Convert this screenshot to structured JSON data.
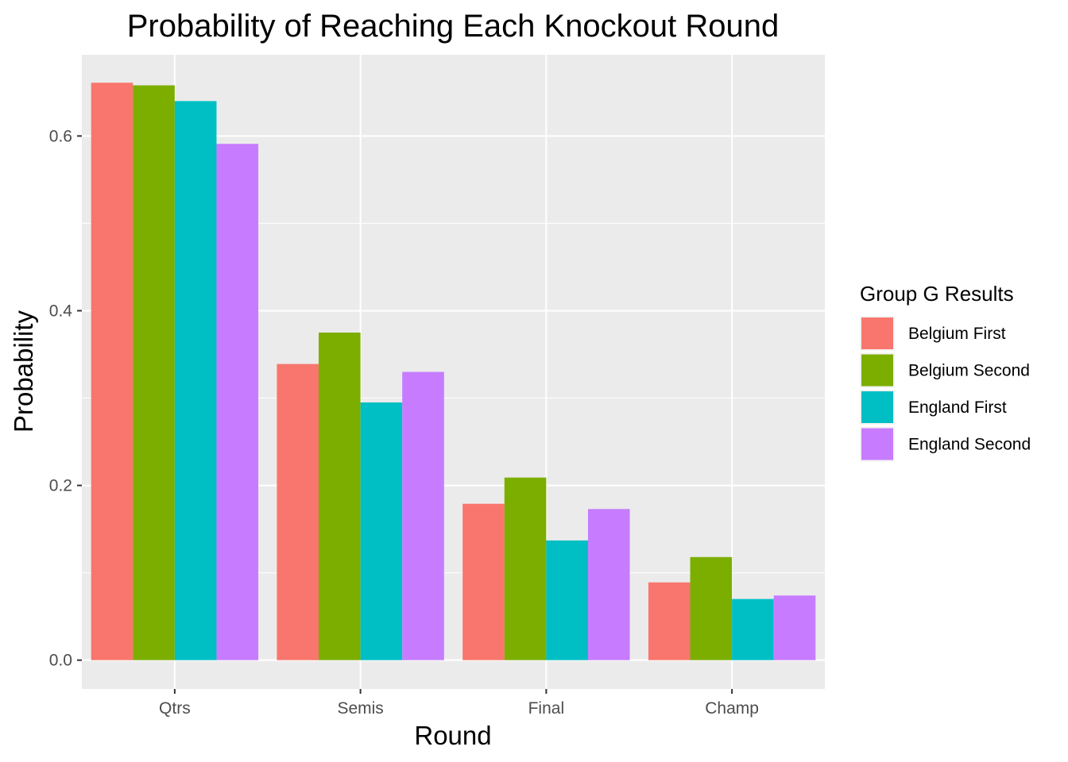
{
  "chart_data": {
    "type": "bar",
    "title": "Probability of Reaching Each Knockout Round",
    "xlabel": "Round",
    "ylabel": "Probability",
    "categories": [
      "Qtrs",
      "Semis",
      "Final",
      "Champ"
    ],
    "ylim": [
      -0.033,
      0.693
    ],
    "yticks": [
      0.0,
      0.2,
      0.4,
      0.6
    ],
    "ytick_labels": [
      "0.0",
      "0.2",
      "0.4",
      "0.6"
    ],
    "grid": true,
    "legend": {
      "title": "Group G Results",
      "placement": "right"
    },
    "series": [
      {
        "name": "Belgium First",
        "color": "#F8766D",
        "values": [
          0.661,
          0.339,
          0.179,
          0.089
        ]
      },
      {
        "name": "Belgium Second",
        "color": "#7CAE00",
        "values": [
          0.658,
          0.375,
          0.209,
          0.118
        ]
      },
      {
        "name": "England First",
        "color": "#00BFC4",
        "values": [
          0.64,
          0.295,
          0.137,
          0.07
        ]
      },
      {
        "name": "England Second",
        "color": "#C77CFF",
        "values": [
          0.591,
          0.33,
          0.173,
          0.074
        ]
      }
    ]
  }
}
